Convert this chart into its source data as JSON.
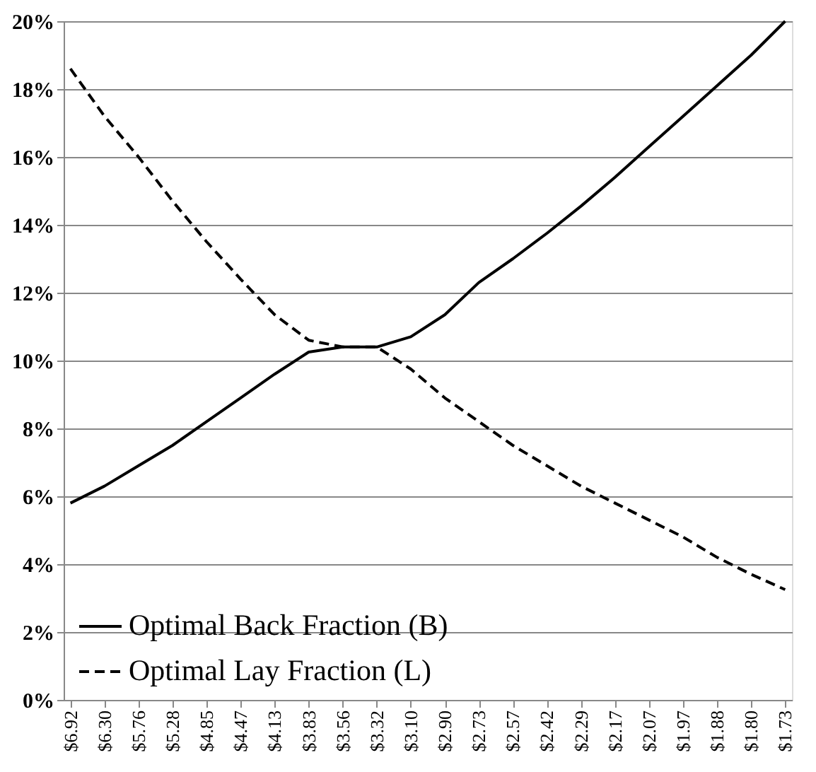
{
  "chart_data": {
    "type": "line",
    "categories": [
      "$6.92",
      "$6.30",
      "$5.76",
      "$5.28",
      "$4.85",
      "$4.47",
      "$4.13",
      "$3.83",
      "$3.56",
      "$3.32",
      "$3.10",
      "$2.90",
      "$2.73",
      "$2.57",
      "$2.42",
      "$2.29",
      "$2.17",
      "$2.07",
      "$1.97",
      "$1.88",
      "$1.80",
      "$1.73"
    ],
    "series": [
      {
        "name": "Optimal Back Fraction (B)",
        "color": "#000000",
        "line_style": "solid",
        "values": [
          5.8,
          6.3,
          6.9,
          7.5,
          8.2,
          8.9,
          9.6,
          10.25,
          10.4,
          10.4,
          10.7,
          11.35,
          12.3,
          13.0,
          13.75,
          14.55,
          15.4,
          16.3,
          17.2,
          18.1,
          19.0,
          20.0
        ]
      },
      {
        "name": "Optimal Lay Fraction (L)",
        "color": "#000000",
        "line_style": "dashed",
        "values": [
          18.6,
          17.2,
          16.0,
          14.7,
          13.5,
          12.4,
          11.35,
          10.6,
          10.4,
          10.4,
          9.75,
          8.9,
          8.2,
          7.5,
          6.9,
          6.3,
          5.8,
          5.3,
          4.8,
          4.2,
          3.7,
          3.25
        ]
      }
    ],
    "ylim": [
      0,
      20
    ],
    "yticks": [
      {
        "value": 0,
        "label": "0%"
      },
      {
        "value": 2,
        "label": "2%"
      },
      {
        "value": 4,
        "label": "4%"
      },
      {
        "value": 6,
        "label": "6%"
      },
      {
        "value": 8,
        "label": "8%"
      },
      {
        "value": 10,
        "label": "10%"
      },
      {
        "value": 12,
        "label": "12%"
      },
      {
        "value": 14,
        "label": "14%"
      },
      {
        "value": 16,
        "label": "16%"
      },
      {
        "value": 18,
        "label": "18%"
      },
      {
        "value": 20,
        "label": "20%"
      }
    ],
    "grid": "y",
    "legend": "bottom left",
    "marker": "none"
  }
}
